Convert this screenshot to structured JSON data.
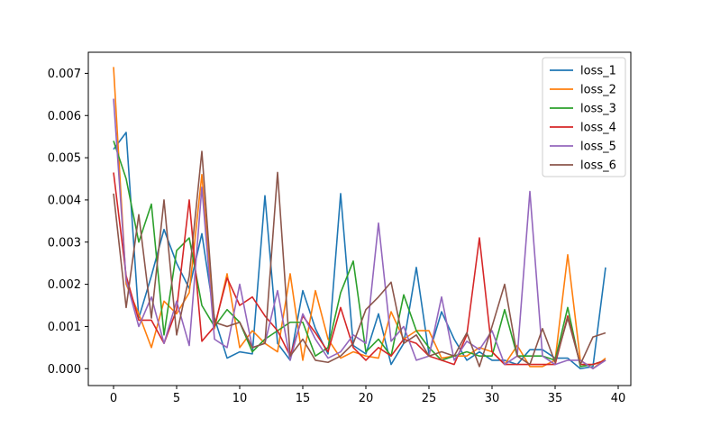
{
  "chart_data": {
    "type": "line",
    "title": "",
    "xlabel": "",
    "ylabel": "",
    "xlim": [
      -2,
      41
    ],
    "ylim": [
      -0.0004,
      0.0075
    ],
    "xticks": [
      0,
      5,
      10,
      15,
      20,
      25,
      30,
      35,
      40
    ],
    "yticks": [
      0.0,
      0.001,
      0.002,
      0.003,
      0.004,
      0.005,
      0.006,
      0.007
    ],
    "ytick_labels": [
      "0.000",
      "0.001",
      "0.002",
      "0.003",
      "0.004",
      "0.005",
      "0.006",
      "0.007"
    ],
    "grid": false,
    "legend_position": "top-right",
    "x": [
      0,
      1,
      2,
      3,
      4,
      5,
      6,
      7,
      8,
      9,
      10,
      11,
      12,
      13,
      14,
      15,
      16,
      17,
      18,
      19,
      20,
      21,
      22,
      23,
      24,
      25,
      26,
      27,
      28,
      29,
      30,
      31,
      32,
      33,
      34,
      35,
      36,
      37,
      38,
      39
    ],
    "series": [
      {
        "name": "loss_1",
        "color": "#1f77b4",
        "values": [
          0.0052,
          0.0056,
          0.0012,
          0.0022,
          0.0033,
          0.0025,
          0.0019,
          0.0032,
          0.0012,
          0.00025,
          0.0004,
          0.00035,
          0.0041,
          0.0006,
          0.0002,
          0.00185,
          0.00095,
          0.00035,
          0.00415,
          0.00055,
          0.00035,
          0.0013,
          0.0001,
          0.0006,
          0.0024,
          0.00035,
          0.00135,
          0.0007,
          0.0002,
          0.0004,
          0.0002,
          0.0002,
          0.0001,
          0.00045,
          0.00045,
          0.00025,
          0.00025,
          0.0,
          5e-05,
          0.0024
        ]
      },
      {
        "name": "loss_2",
        "color": "#ff7f0e",
        "values": [
          0.00715,
          0.002,
          0.0013,
          0.0005,
          0.0016,
          0.0013,
          0.0018,
          0.0046,
          0.00095,
          0.00225,
          0.0005,
          0.0009,
          0.0006,
          0.0004,
          0.00225,
          0.0002,
          0.00185,
          0.0007,
          0.00025,
          0.0004,
          0.0003,
          0.00025,
          0.00135,
          0.0007,
          0.0009,
          0.0009,
          0.00025,
          0.0003,
          0.0003,
          0.0005,
          0.0004,
          0.0001,
          0.00055,
          5e-05,
          5e-05,
          0.0002,
          0.0027,
          0.0002,
          0.0,
          0.00025
        ]
      },
      {
        "name": "loss_3",
        "color": "#2ca02c",
        "values": [
          0.0054,
          0.0045,
          0.003,
          0.0039,
          0.0008,
          0.0028,
          0.0031,
          0.0015,
          0.001,
          0.0014,
          0.0011,
          0.0004,
          0.0007,
          0.0009,
          0.0011,
          0.0011,
          0.0003,
          0.0005,
          0.0018,
          0.00255,
          0.0004,
          0.0007,
          0.0003,
          0.00175,
          0.0009,
          0.0005,
          0.0002,
          0.0003,
          0.0004,
          0.0003,
          0.0003,
          0.0014,
          0.0003,
          0.0003,
          0.0003,
          0.0002,
          0.00145,
          5e-05,
          0.0001,
          0.0002
        ]
      },
      {
        "name": "loss_4",
        "color": "#d62728",
        "values": [
          0.00465,
          0.0022,
          0.00115,
          0.00115,
          0.0006,
          0.0014,
          0.004,
          0.00065,
          0.001,
          0.00215,
          0.0015,
          0.0017,
          0.00125,
          0.0009,
          0.0003,
          0.00125,
          0.00085,
          0.0004,
          0.00145,
          0.0005,
          0.0002,
          0.0005,
          0.0003,
          0.0007,
          0.0006,
          0.0003,
          0.0002,
          0.0001,
          0.0008,
          0.0031,
          0.0004,
          0.0001,
          0.0001,
          0.0001,
          0.0001,
          0.0001,
          0.00125,
          0.0001,
          0.0001,
          0.0002
        ]
      },
      {
        "name": "loss_5",
        "color": "#9467bd",
        "values": [
          0.0064,
          0.0021,
          0.001,
          0.0017,
          0.0006,
          0.0016,
          0.00055,
          0.0043,
          0.0007,
          0.0005,
          0.002,
          0.0005,
          0.0006,
          0.00185,
          0.0002,
          0.0013,
          0.0007,
          0.00025,
          0.0004,
          0.0008,
          0.0006,
          0.00345,
          0.00065,
          0.001,
          0.0002,
          0.0003,
          0.0017,
          0.0002,
          0.00065,
          0.00045,
          0.0009,
          0.0001,
          0.0003,
          0.0042,
          0.0003,
          0.0001,
          0.0002,
          0.0002,
          0.0,
          0.0002
        ]
      },
      {
        "name": "loss_6",
        "color": "#8c564b",
        "values": [
          0.00415,
          0.00145,
          0.00365,
          0.0012,
          0.004,
          0.0008,
          0.0022,
          0.00515,
          0.0011,
          0.001,
          0.0011,
          0.0005,
          0.0006,
          0.00465,
          0.0003,
          0.0007,
          0.0002,
          0.00015,
          0.0003,
          0.0006,
          0.0014,
          0.0017,
          0.00205,
          0.0006,
          0.0008,
          0.0003,
          0.0004,
          0.0003,
          0.00085,
          5e-05,
          0.001,
          0.002,
          0.0003,
          0.0001,
          0.00095,
          0.00015,
          0.0012,
          0.0001,
          0.00075,
          0.00085
        ]
      }
    ]
  }
}
